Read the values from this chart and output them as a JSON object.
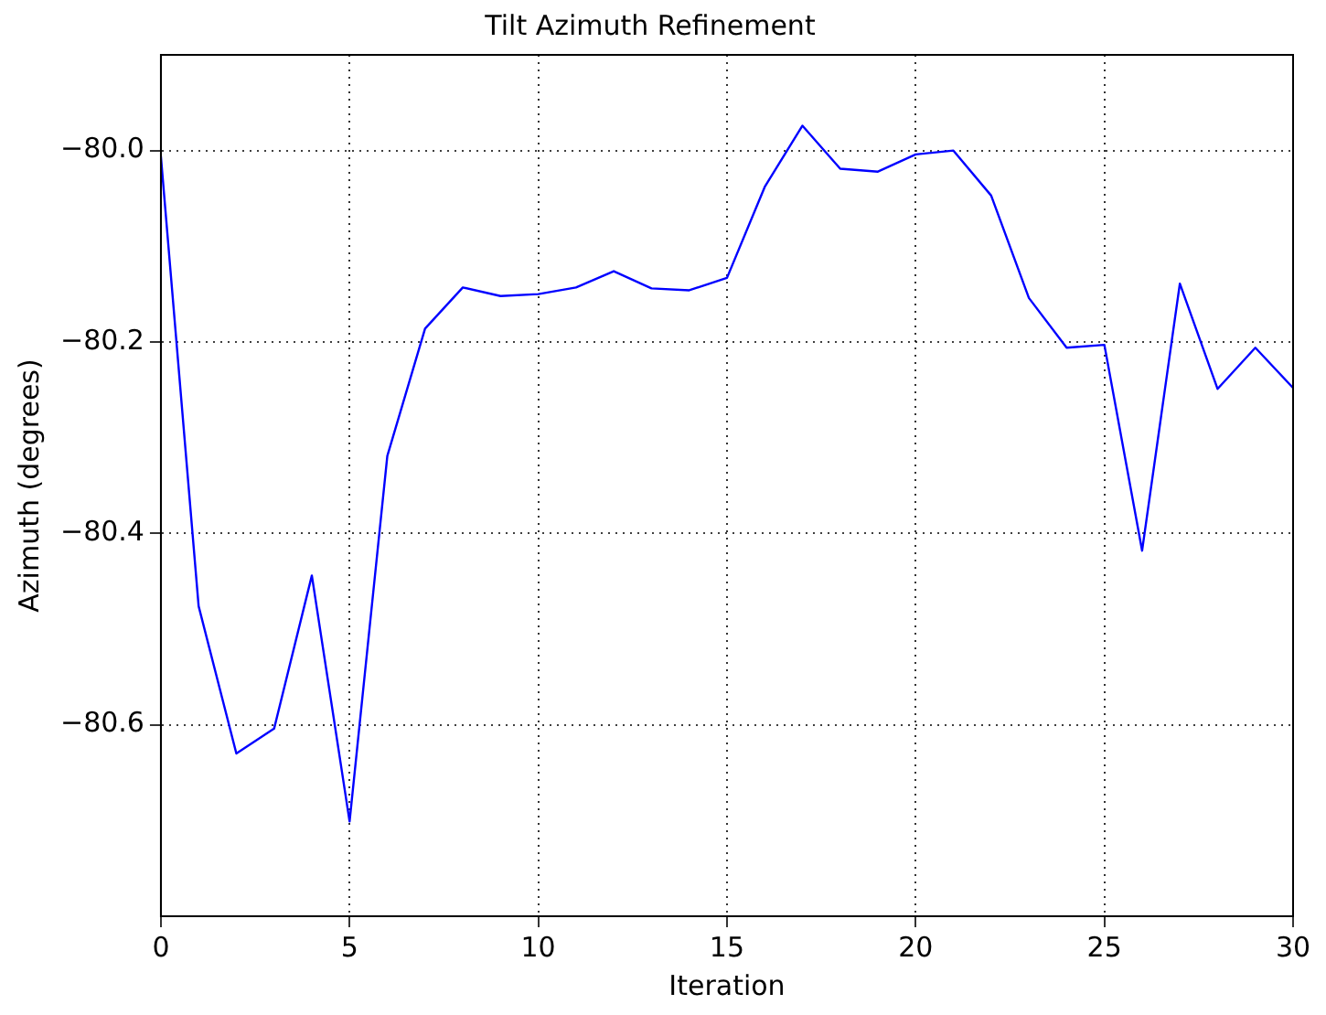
{
  "chart_data": {
    "type": "line",
    "title": "Tilt Azimuth Refinement",
    "xlabel": "Iteration",
    "ylabel": "Azimuth (degrees)",
    "x": [
      0,
      1,
      2,
      3,
      4,
      5,
      6,
      7,
      8,
      9,
      10,
      11,
      12,
      13,
      14,
      15,
      16,
      17,
      18,
      19,
      20,
      21,
      22,
      23,
      24,
      25,
      26,
      27,
      28,
      29,
      30
    ],
    "series": [
      {
        "color": "#0000ff",
        "values": [
          -80.006,
          -80.476,
          -80.63,
          -80.604,
          -80.444,
          -80.701,
          -80.319,
          -80.186,
          -80.143,
          -80.152,
          -80.15,
          -80.143,
          -80.126,
          -80.144,
          -80.146,
          -80.133,
          -80.038,
          -79.974,
          -80.019,
          -80.022,
          -80.004,
          -80.0,
          -80.047,
          -80.154,
          -80.206,
          -80.203,
          -80.418,
          -80.139,
          -80.249,
          -80.206,
          -80.248
        ]
      }
    ],
    "xlim": [
      0,
      30
    ],
    "xticks": [
      0,
      5,
      10,
      15,
      20,
      25,
      30
    ],
    "ylim": [
      -80.8,
      -79.9
    ],
    "yticks": [
      {
        "value": -80.6,
        "label": "−80.6"
      },
      {
        "value": -80.4,
        "label": "−80.4"
      },
      {
        "value": -80.2,
        "label": "−80.2"
      },
      {
        "value": -80.0,
        "label": "−80.0"
      }
    ],
    "grid": true,
    "legend": false,
    "marker": "none",
    "line_style": "solid"
  }
}
